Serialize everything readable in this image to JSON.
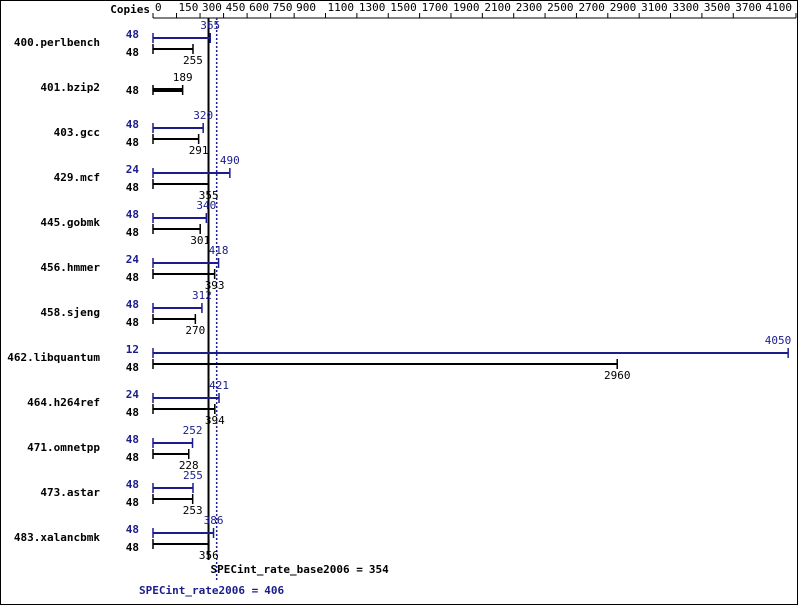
{
  "chart_data": {
    "type": "bar",
    "orientation": "horizontal",
    "x_label": "Copies",
    "xlim": [
      0,
      4100
    ],
    "xticks": [
      0,
      150,
      300,
      450,
      600,
      750,
      900,
      1100,
      1300,
      1500,
      1700,
      1900,
      2100,
      2300,
      2500,
      2700,
      2900,
      3100,
      3300,
      3500,
      3700,
      4100
    ],
    "categories": [
      "400.perlbench",
      "401.bzip2",
      "403.gcc",
      "429.mcf",
      "445.gobmk",
      "456.hmmer",
      "458.sjeng",
      "462.libquantum",
      "464.h264ref",
      "471.omnetpp",
      "473.astar",
      "483.xalancbmk"
    ],
    "series": [
      {
        "color": "#1c1c8c",
        "copies": [
          48,
          null,
          48,
          24,
          48,
          24,
          48,
          12,
          24,
          48,
          48,
          48
        ],
        "values": [
          365,
          null,
          320,
          490,
          340,
          418,
          312,
          4050,
          421,
          252,
          255,
          386
        ]
      },
      {
        "color": "#000000",
        "copies": [
          48,
          48,
          48,
          48,
          48,
          48,
          48,
          48,
          48,
          48,
          48,
          48
        ],
        "values": [
          255,
          189,
          291,
          355,
          301,
          393,
          270,
          2960,
          394,
          228,
          253,
          356
        ]
      }
    ],
    "reference_lines": [
      {
        "label": "SPECint_rate_base2006 =",
        "value": 354,
        "color": "#000000",
        "style": "solid"
      },
      {
        "label": "SPECint_rate2006 =",
        "value": 406,
        "color": "#1c1c8c",
        "style": "dotted"
      }
    ]
  }
}
